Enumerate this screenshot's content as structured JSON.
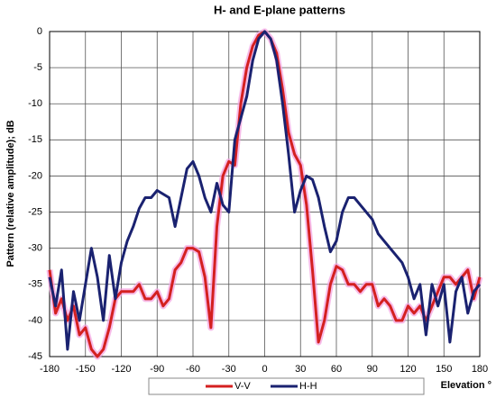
{
  "chart_data": {
    "type": "line",
    "title": "H- and E-plane patterns",
    "y_label": "Pattern (relative amplitude); dB",
    "x_label": "Elevation °",
    "x": [
      -180,
      -175,
      -170,
      -165,
      -160,
      -155,
      -150,
      -145,
      -140,
      -135,
      -130,
      -125,
      -120,
      -115,
      -110,
      -105,
      -100,
      -95,
      -90,
      -85,
      -80,
      -75,
      -70,
      -65,
      -60,
      -55,
      -50,
      -45,
      -40,
      -35,
      -30,
      -25,
      -20,
      -15,
      -10,
      -5,
      0,
      5,
      10,
      15,
      20,
      25,
      30,
      35,
      40,
      45,
      50,
      55,
      60,
      65,
      70,
      75,
      80,
      85,
      90,
      95,
      100,
      105,
      110,
      115,
      120,
      125,
      130,
      135,
      140,
      145,
      150,
      155,
      160,
      165,
      170,
      175,
      180
    ],
    "series": [
      {
        "name": "V-V",
        "color": "#d42020",
        "values": [
          -33,
          -39,
          -37,
          -40,
          -38,
          -42,
          -41,
          -44,
          -45,
          -44,
          -41,
          -37,
          -36,
          -36,
          -36,
          -35,
          -37,
          -37,
          -36,
          -38,
          -37,
          -33,
          -32,
          -30,
          -30,
          -30.5,
          -34,
          -41,
          -27,
          -20,
          -18,
          -18.5,
          -10,
          -5,
          -2,
          -0.5,
          0,
          -1,
          -3,
          -8,
          -14,
          -17,
          -18.5,
          -24,
          -33,
          -43,
          -40,
          -35,
          -32.5,
          -33,
          -35,
          -35,
          -36,
          -35,
          -35,
          -38,
          -37,
          -38,
          -40,
          -40,
          -38,
          -39,
          -38,
          -40,
          -38,
          -36,
          -34,
          -34,
          -35,
          -34,
          -33,
          -37,
          -34
        ]
      },
      {
        "name": "H-H",
        "color": "#1a2270",
        "values": [
          -34,
          -38,
          -33,
          -44,
          -36,
          -40,
          -35,
          -30,
          -34,
          -40,
          -31,
          -37,
          -32,
          -29,
          -27,
          -24.5,
          -23,
          -23,
          -22,
          -22.5,
          -23,
          -27,
          -23,
          -19,
          -18,
          -20,
          -23,
          -25,
          -21,
          -24,
          -25,
          -15,
          -12,
          -9,
          -4,
          -1,
          0,
          -1,
          -4,
          -10,
          -17,
          -25,
          -22,
          -20,
          -20.5,
          -23,
          -27,
          -30.5,
          -29,
          -25,
          -23,
          -23,
          -24,
          -25,
          -26,
          -28,
          -29,
          -30,
          -31,
          -32,
          -34,
          -37,
          -35,
          -42,
          -35,
          -38,
          -35,
          -43,
          -36,
          -34,
          -39,
          -36,
          -35
        ]
      }
    ],
    "xlim": [
      -180,
      180
    ],
    "xticks": [
      -180,
      -150,
      -120,
      -90,
      -60,
      -30,
      0,
      30,
      60,
      90,
      120,
      150,
      180
    ],
    "ylim": [
      -45,
      0
    ],
    "yticks": [
      0,
      -5,
      -10,
      -15,
      -20,
      -25,
      -30,
      -35,
      -40,
      -45
    ],
    "grid": true,
    "legend": "bottom"
  }
}
